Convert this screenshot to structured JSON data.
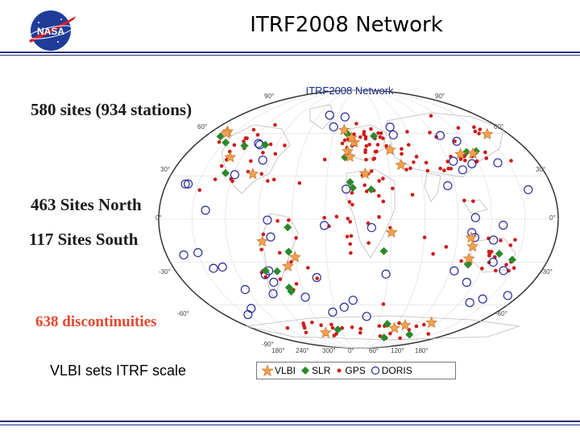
{
  "header": {
    "title": "ITRF2008 Network",
    "logo_text": "NASA"
  },
  "stats": {
    "sites": "580 sites (934 stations)",
    "north": "463 Sites North",
    "south": "117 Sites South",
    "discontinuities": "638 discontinuities"
  },
  "footnote": "VLBI sets ITRF scale",
  "map": {
    "title": "ITRF2008 Network",
    "lat_labels_left": [
      "60°",
      "30°",
      "0°",
      "-30°",
      "-60°"
    ],
    "lat_labels_right": [
      "60°",
      "30°",
      "0°",
      "-30°",
      "-60°"
    ],
    "lat_label_top_left": "90°",
    "lat_label_top_right": "90°",
    "lat_label_bottom": "-90°",
    "lon_labels_bottom": [
      "180°",
      "240°",
      "300°",
      "0°",
      "60°",
      "120°",
      "180°"
    ]
  },
  "legend": {
    "items": [
      "VLBI",
      "SLR",
      "GPS",
      "DORIS"
    ]
  },
  "colors": {
    "rule": "#2a2f7a",
    "vlbi": "#f0a050",
    "slr": "#2a8a2a",
    "gps": "#cc1a1a",
    "doris": "#2a2a9a",
    "discontinuities": "#e5482e"
  }
}
